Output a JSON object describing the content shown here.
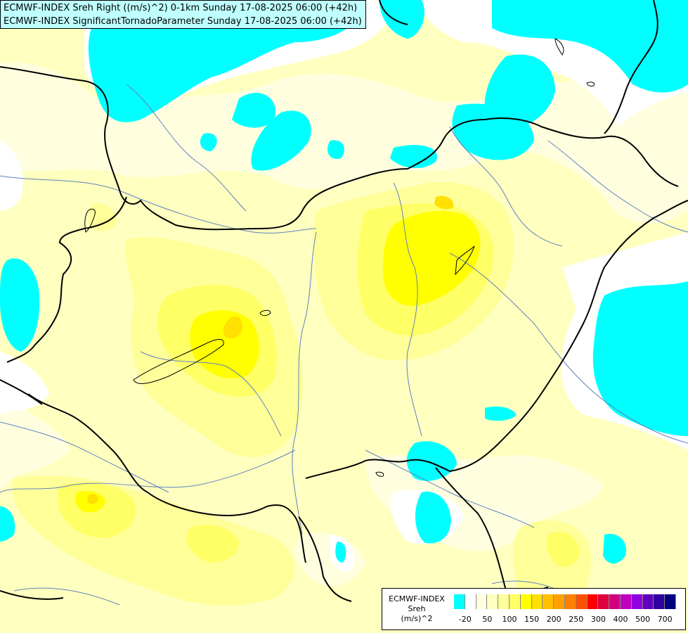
{
  "header": {
    "line1": "ECMWF-INDEX Sreh Right ((m/s)^2) 0-1km Sunday 17-08-2025 06:00 (+42h)",
    "line2": "ECMWF-INDEX SignificantTornadoParameter Sunday 17-08-2025 06:00 (+42h)"
  },
  "legend": {
    "title": "ECMWF-INDEX",
    "param": "Sreh",
    "unit": "(m/s)^2",
    "colors": [
      "#00ffff",
      "#ffffff",
      "#ffffe0",
      "#ffffc0",
      "#ffff99",
      "#ffff66",
      "#ffff00",
      "#ffe000",
      "#ffc000",
      "#ffa000",
      "#ff8000",
      "#ff5000",
      "#ff0000",
      "#e00040",
      "#d00080",
      "#c000c0",
      "#9000e0",
      "#6000c0",
      "#3000a0",
      "#000080"
    ],
    "ticks": [
      "-20",
      "50",
      "100",
      "150",
      "200",
      "250",
      "300",
      "400",
      "500",
      "700"
    ]
  },
  "map": {
    "colors": {
      "background": "#ffffc0",
      "cyan": "#00ffff",
      "white": "#ffffff",
      "pale": "#ffffe0",
      "light_yellow": "#ffff99",
      "yellow": "#ffff66",
      "deep_yellow": "#ffff00",
      "orange_yellow": "#ffe000",
      "border": "#000000",
      "river": "#6080c0"
    }
  }
}
